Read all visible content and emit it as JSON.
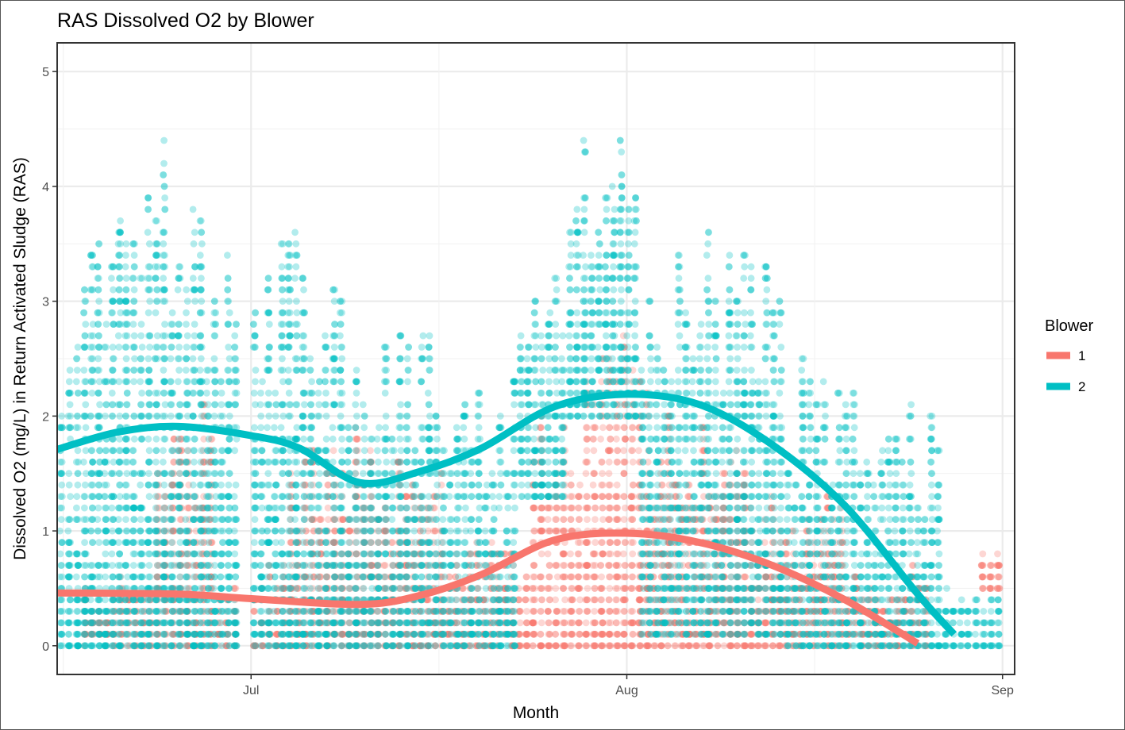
{
  "chart_data": {
    "type": "scatter",
    "title": "RAS Dissolved O2 by Blower",
    "xlabel": "Month",
    "ylabel": "Dissolved O2 (mg/L) in Return Activated Sludge (RAS)",
    "x_range": [
      "2017-06-15",
      "2017-09-02"
    ],
    "x_ticks": [
      {
        "date": "2017-07-01",
        "label": "Jul"
      },
      {
        "date": "2017-08-01",
        "label": "Aug"
      },
      {
        "date": "2017-09-01",
        "label": "Sep"
      }
    ],
    "ylim": [
      -0.25,
      5.25
    ],
    "y_ticks": [
      0,
      1,
      2,
      3,
      4,
      5
    ],
    "grid": true,
    "legend": {
      "title": "Blower",
      "position": "right"
    },
    "series": [
      {
        "name": "1",
        "color": "#F8766D",
        "point_opacity": 0.3,
        "point_clusters": [
          {
            "start": "2017-06-17",
            "end": "2017-06-23",
            "y_min": 0.0,
            "y_max": 0.6
          },
          {
            "start": "2017-06-23",
            "end": "2017-06-28",
            "y_min": 0.0,
            "y_max": 2.3
          },
          {
            "start": "2017-06-28",
            "end": "2017-06-30",
            "y_min": 0.0,
            "y_max": 0.6
          },
          {
            "start": "2017-07-01",
            "end": "2017-07-04",
            "y_min": 0.0,
            "y_max": 0.9
          },
          {
            "start": "2017-07-04",
            "end": "2017-07-10",
            "y_min": 0.0,
            "y_max": 1.9
          },
          {
            "start": "2017-07-10",
            "end": "2017-07-17",
            "y_min": 0.0,
            "y_max": 1.7
          },
          {
            "start": "2017-07-17",
            "end": "2017-07-24",
            "y_min": 0.0,
            "y_max": 0.9
          },
          {
            "start": "2017-07-24",
            "end": "2017-07-29",
            "y_min": 0.0,
            "y_max": 2.3
          },
          {
            "start": "2017-07-29",
            "end": "2017-08-03",
            "y_min": 0.0,
            "y_max": 2.9
          },
          {
            "start": "2017-08-03",
            "end": "2017-08-11",
            "y_min": 0.0,
            "y_max": 2.2
          },
          {
            "start": "2017-08-11",
            "end": "2017-08-19",
            "y_min": 0.0,
            "y_max": 1.3
          },
          {
            "start": "2017-08-19",
            "end": "2017-08-26",
            "y_min": 0.0,
            "y_max": 0.7
          },
          {
            "start": "2017-08-30",
            "end": "2017-09-01",
            "y_min": 0.5,
            "y_max": 0.9
          }
        ],
        "smooth": [
          {
            "date": "2017-06-15",
            "y": 0.46
          },
          {
            "date": "2017-06-25",
            "y": 0.45
          },
          {
            "date": "2017-07-01",
            "y": 0.41
          },
          {
            "date": "2017-07-10",
            "y": 0.36
          },
          {
            "date": "2017-07-15",
            "y": 0.44
          },
          {
            "date": "2017-07-20",
            "y": 0.62
          },
          {
            "date": "2017-07-26",
            "y": 0.92
          },
          {
            "date": "2017-08-01",
            "y": 0.98
          },
          {
            "date": "2017-08-07",
            "y": 0.9
          },
          {
            "date": "2017-08-13",
            "y": 0.7
          },
          {
            "date": "2017-08-19",
            "y": 0.4
          },
          {
            "date": "2017-08-25",
            "y": 0.02
          }
        ]
      },
      {
        "name": "2",
        "color": "#00BFC4",
        "point_opacity": 0.3,
        "point_clusters": [
          {
            "start": "2017-06-15",
            "end": "2017-06-17",
            "y_min": 0.0,
            "y_max": 3.5
          },
          {
            "start": "2017-06-17",
            "end": "2017-06-21",
            "y_min": 0.0,
            "y_max": 4.4
          },
          {
            "start": "2017-06-21",
            "end": "2017-06-26",
            "y_min": 0.0,
            "y_max": 4.6
          },
          {
            "start": "2017-06-26",
            "end": "2017-06-30",
            "y_min": 0.0,
            "y_max": 4.2
          },
          {
            "start": "2017-07-01",
            "end": "2017-07-05",
            "y_min": 0.0,
            "y_max": 4.0
          },
          {
            "start": "2017-07-05",
            "end": "2017-07-10",
            "y_min": 0.0,
            "y_max": 3.4
          },
          {
            "start": "2017-07-10",
            "end": "2017-07-16",
            "y_min": 0.0,
            "y_max": 3.2
          },
          {
            "start": "2017-07-16",
            "end": "2017-07-23",
            "y_min": 0.0,
            "y_max": 2.5
          },
          {
            "start": "2017-07-23",
            "end": "2017-07-27",
            "y_min": 1.3,
            "y_max": 3.4
          },
          {
            "start": "2017-07-27",
            "end": "2017-08-02",
            "y_min": 2.0,
            "y_max": 4.5
          },
          {
            "start": "2017-08-02",
            "end": "2017-08-08",
            "y_min": 0.1,
            "y_max": 3.9
          },
          {
            "start": "2017-08-08",
            "end": "2017-08-14",
            "y_min": 0.1,
            "y_max": 3.7
          },
          {
            "start": "2017-08-14",
            "end": "2017-08-20",
            "y_min": 0.0,
            "y_max": 2.6
          },
          {
            "start": "2017-08-20",
            "end": "2017-08-27",
            "y_min": 0.0,
            "y_max": 2.1
          },
          {
            "start": "2017-08-27",
            "end": "2017-09-01",
            "y_min": 0.0,
            "y_max": 0.5
          }
        ],
        "smooth": [
          {
            "date": "2017-06-15",
            "y": 1.71
          },
          {
            "date": "2017-06-20",
            "y": 1.86
          },
          {
            "date": "2017-06-25",
            "y": 1.91
          },
          {
            "date": "2017-07-01",
            "y": 1.83
          },
          {
            "date": "2017-07-05",
            "y": 1.72
          },
          {
            "date": "2017-07-10",
            "y": 1.42
          },
          {
            "date": "2017-07-15",
            "y": 1.52
          },
          {
            "date": "2017-07-20",
            "y": 1.72
          },
          {
            "date": "2017-07-26",
            "y": 2.08
          },
          {
            "date": "2017-08-01",
            "y": 2.19
          },
          {
            "date": "2017-08-07",
            "y": 2.1
          },
          {
            "date": "2017-08-13",
            "y": 1.75
          },
          {
            "date": "2017-08-19",
            "y": 1.22
          },
          {
            "date": "2017-08-25",
            "y": 0.45
          },
          {
            "date": "2017-08-28",
            "y": 0.1
          }
        ]
      }
    ]
  }
}
